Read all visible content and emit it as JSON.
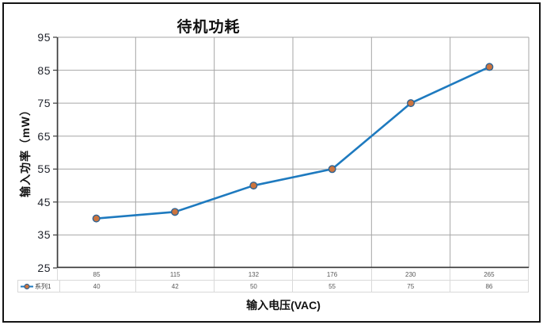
{
  "figure": {
    "border_color": "#141414",
    "background": "#ffffff"
  },
  "chart_data": {
    "type": "line",
    "title": "待机功耗",
    "xlabel": "输入电压(VAC)",
    "ylabel": "输入功率（mW）",
    "categories": [
      "85",
      "115",
      "132",
      "176",
      "230",
      "265"
    ],
    "series": [
      {
        "name": "系列1",
        "values": [
          40,
          42,
          50,
          55,
          75,
          86
        ]
      }
    ],
    "ylim": [
      25,
      95
    ],
    "yticks": [
      95,
      85,
      75,
      65,
      55,
      45,
      35,
      25
    ],
    "grid": true,
    "data_table_shown": true,
    "legend_position": "bottom-left",
    "colors": {
      "line": "#1e7abf",
      "marker_fill": "#cc743e",
      "marker_stroke": "#2e6393",
      "gridline": "#a6a6a6",
      "axis": "#3b3b3b",
      "tick_text": "#23262e",
      "table_text": "#595959",
      "table_border": "#d9d9d9",
      "title_text": "#111111"
    }
  }
}
